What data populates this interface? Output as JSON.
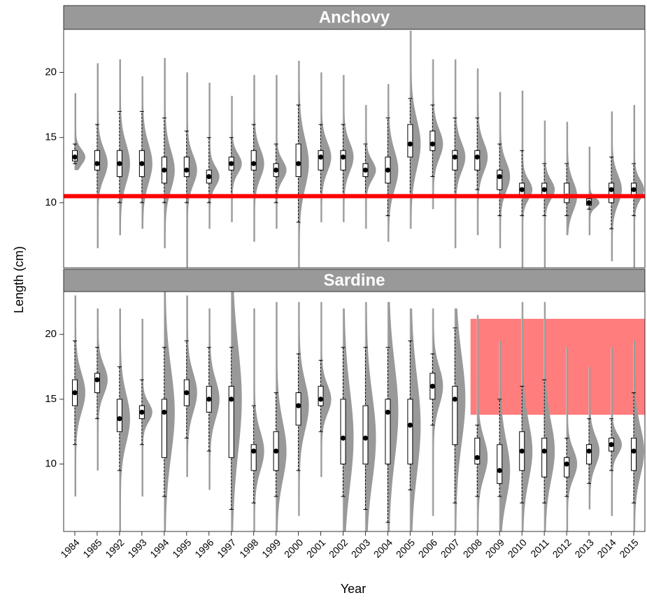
{
  "categories": [
    "1984",
    "1985",
    "1992",
    "1993",
    "1994",
    "1995",
    "1996",
    "1997",
    "1998",
    "1999",
    "2000",
    "2001",
    "2002",
    "2003",
    "2004",
    "2005",
    "2006",
    "2007",
    "2008",
    "2009",
    "2010",
    "2011",
    "2012",
    "2013",
    "2014",
    "2015"
  ],
  "x_label": "Year",
  "y_label": "Length (cm)",
  "chart_data": [
    {
      "type": "box",
      "title": "Anchovy",
      "ylim": [
        5.0,
        23.3
      ],
      "yticks": [
        10,
        15,
        20
      ],
      "box_color": "#000000",
      "violin_color": "#999999",
      "range_color": "#cccccc",
      "median": [
        13.5,
        13,
        13,
        13,
        12.5,
        12.5,
        12,
        13,
        13,
        12.5,
        13,
        13.5,
        13.5,
        12.5,
        12.5,
        14.5,
        14.5,
        13.5,
        13.5,
        12,
        11,
        11,
        10.5,
        10,
        11,
        11
      ],
      "q1": [
        13.2,
        12.5,
        12,
        12,
        11.5,
        12,
        11.5,
        12.5,
        12.5,
        12,
        12,
        12.5,
        12.5,
        12,
        11.5,
        13.5,
        14,
        12.5,
        12.5,
        11,
        10.5,
        10.5,
        10,
        9.8,
        10,
        10.5
      ],
      "q3": [
        14,
        14,
        14,
        14,
        13.5,
        13.5,
        12.5,
        13.5,
        14,
        13,
        14.5,
        14,
        14,
        13,
        13.5,
        16,
        15.5,
        14,
        14,
        12.5,
        11.5,
        11.5,
        11.5,
        10.3,
        11.5,
        11.5
      ],
      "whisker_low": [
        13,
        10.5,
        10,
        10,
        10,
        10,
        10,
        10.5,
        10.5,
        10,
        8.5,
        10.5,
        10.5,
        10.5,
        9,
        10.5,
        12,
        10.5,
        11,
        9,
        9,
        9,
        9,
        9.5,
        8,
        9
      ],
      "whisker_high": [
        14.5,
        16,
        17,
        17,
        16.5,
        15.5,
        15,
        15,
        16,
        14.5,
        17.5,
        16,
        16,
        14.5,
        16.5,
        18,
        17.5,
        16.5,
        16.5,
        14.5,
        14,
        13,
        13,
        10.5,
        13.5,
        13
      ],
      "min": [
        12.5,
        6.5,
        7.5,
        8,
        6.5,
        5,
        8,
        8.5,
        7,
        8,
        5,
        8.5,
        8.5,
        8,
        7,
        8,
        9.5,
        6.5,
        7.5,
        6.5,
        5,
        5,
        7.5,
        7.5,
        5.5,
        5
      ],
      "max": [
        18.4,
        20.7,
        21,
        19.7,
        21.1,
        20,
        19.2,
        18.2,
        19.8,
        19.8,
        20.9,
        20,
        19.8,
        17.5,
        19.1,
        23.2,
        21,
        21,
        20.3,
        18.5,
        18.6,
        16.3,
        16.2,
        14.3,
        17,
        17.5
      ],
      "hline": 10.5,
      "hline_color": "#ff0000"
    },
    {
      "type": "box",
      "title": "Sardine",
      "ylim": [
        4.8,
        23.3
      ],
      "yticks": [
        10,
        15,
        20
      ],
      "box_color": "#000000",
      "violin_color": "#999999",
      "range_color": "#cccccc",
      "median": [
        15.5,
        16.5,
        13.5,
        14,
        14,
        15.5,
        15,
        15,
        11,
        11,
        14.5,
        15,
        12,
        12,
        14,
        13,
        16,
        15,
        10.5,
        9.5,
        11,
        11,
        10,
        11,
        11.5,
        11
      ],
      "q1": [
        14.5,
        15.5,
        12.5,
        13.5,
        10.5,
        14.5,
        14,
        10.5,
        9.5,
        9.5,
        13,
        14.5,
        10,
        10,
        10,
        10,
        15,
        11.5,
        10,
        8.5,
        9.5,
        9,
        9,
        10,
        11,
        9.5
      ],
      "q3": [
        16.5,
        17,
        15,
        14.5,
        15,
        16.5,
        16,
        16,
        11.5,
        12.5,
        15.5,
        16,
        15,
        14.5,
        15,
        15,
        17,
        16,
        12,
        11.5,
        12.5,
        12,
        10.5,
        11.5,
        12,
        12
      ],
      "whisker_low": [
        11.5,
        13.5,
        9.5,
        11.5,
        7.5,
        12,
        11,
        6.5,
        7,
        7.5,
        9.5,
        12.5,
        7.5,
        6.5,
        5.5,
        8,
        13,
        7,
        7.5,
        7.5,
        7,
        7,
        7.5,
        8.5,
        9.5,
        7
      ],
      "whisker_high": [
        19.5,
        19,
        17.5,
        16.5,
        19,
        19.5,
        19,
        19,
        14.5,
        15.5,
        18.5,
        18,
        19,
        19,
        19,
        19.5,
        18.5,
        20.5,
        13,
        15,
        16,
        16.5,
        12,
        13.5,
        13.5,
        15.5
      ],
      "min": [
        7.5,
        9.5,
        4.8,
        7.5,
        4.8,
        9,
        8,
        4.8,
        4.8,
        4.8,
        6,
        9,
        4.8,
        4.8,
        4.8,
        4.8,
        6,
        4.8,
        4.8,
        4.8,
        4.8,
        4.8,
        4.8,
        6.5,
        6,
        4.8
      ],
      "max": [
        23,
        22,
        22,
        21.2,
        23.3,
        23,
        22,
        23.3,
        22,
        22.5,
        22.5,
        22.5,
        22,
        22.5,
        22.5,
        22,
        22,
        22,
        21.5,
        19.5,
        22.5,
        22.5,
        19,
        17.5,
        19,
        19.5
      ],
      "highlight": {
        "from": "2008",
        "ylim": [
          13.8,
          21.2
        ],
        "color": "#ff6666"
      }
    }
  ]
}
